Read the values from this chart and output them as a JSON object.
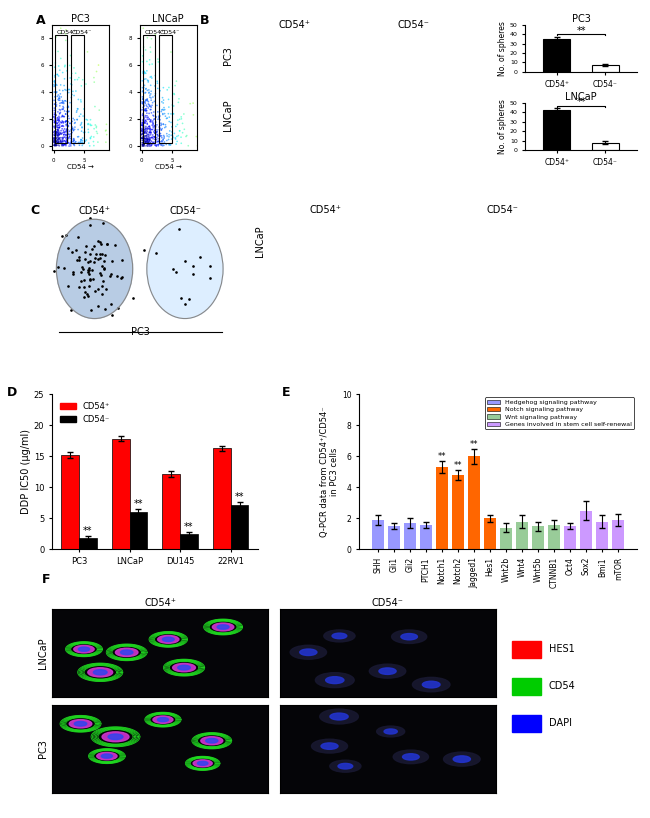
{
  "panel_D": {
    "groups": [
      "PC3",
      "LNCaP",
      "DU145",
      "22RV1"
    ],
    "cd54pos_values": [
      15.2,
      17.8,
      12.2,
      16.3
    ],
    "cd54pos_errors": [
      0.5,
      0.4,
      0.5,
      0.4
    ],
    "cd54neg_values": [
      1.8,
      6.0,
      2.5,
      7.2
    ],
    "cd54neg_errors": [
      0.3,
      0.5,
      0.3,
      0.4
    ],
    "cd54pos_color": "#FF0000",
    "cd54neg_color": "#000000",
    "ylabel": "DDP IC50 (μg/ml)",
    "ylim": [
      0,
      25
    ],
    "yticks": [
      0,
      5,
      10,
      15,
      20,
      25
    ],
    "significance": [
      true,
      true,
      true,
      true
    ]
  },
  "panel_E": {
    "categories": [
      "SHH",
      "Gli1",
      "Gli2",
      "PTCH1",
      "Notch1",
      "Notch2",
      "Jagged1",
      "Hes1",
      "Wnt2b",
      "Wnt4",
      "Wnt5b",
      "CTNNB1",
      "Oct4",
      "Sox2",
      "Bmi1",
      "mTOR"
    ],
    "values": [
      1.9,
      1.5,
      1.7,
      1.6,
      5.3,
      4.8,
      6.0,
      2.0,
      1.4,
      1.8,
      1.5,
      1.6,
      1.5,
      2.5,
      1.8,
      1.9
    ],
    "errors": [
      0.3,
      0.2,
      0.3,
      0.2,
      0.4,
      0.3,
      0.5,
      0.2,
      0.3,
      0.4,
      0.3,
      0.3,
      0.2,
      0.6,
      0.4,
      0.4
    ],
    "colors": [
      "#9999FF",
      "#9999FF",
      "#9999FF",
      "#9999FF",
      "#FF6600",
      "#FF6600",
      "#FF6600",
      "#FF6600",
      "#99CC99",
      "#99CC99",
      "#99CC99",
      "#99CC99",
      "#CC99FF",
      "#CC99FF",
      "#CC99FF",
      "#CC99FF"
    ],
    "pathway_colors": [
      "#9999FF",
      "#FF6600",
      "#99CC99",
      "#CC99FF"
    ],
    "pathway_names": [
      "Hedgehog signaling pathway",
      "Notch signaling pathway",
      "Wnt signaling pathway",
      "Genes involved in stem cell self-renewal"
    ],
    "ylabel": "Q-PCR data from CD54⁺/CD54⁻\nin PC3 cells",
    "ylim": [
      0,
      10
    ],
    "yticks": [
      0,
      2,
      4,
      6,
      8,
      10
    ],
    "significance": [
      false,
      false,
      false,
      false,
      true,
      true,
      true,
      false,
      false,
      false,
      false,
      false,
      false,
      false,
      false,
      false
    ]
  },
  "panel_B_PC3": {
    "cd54pos_value": 35,
    "cd54neg_value": 7,
    "cd54pos_error": 2,
    "cd54neg_error": 1,
    "ylim": [
      0,
      50
    ],
    "yticks": [
      0,
      10,
      20,
      30,
      40,
      50
    ],
    "ylabel": "No. of spheres",
    "title": "PC3"
  },
  "panel_B_LNCaP": {
    "cd54pos_value": 42,
    "cd54neg_value": 8,
    "cd54pos_error": 2,
    "cd54neg_error": 1.5,
    "ylim": [
      0,
      50
    ],
    "yticks": [
      0,
      10,
      20,
      30,
      40,
      50
    ],
    "ylabel": "No. of spheres",
    "title": "LNCaP"
  },
  "panel_F_legend": [
    {
      "label": "HES1",
      "color": "#FF0000"
    },
    {
      "label": "CD54",
      "color": "#00CC00"
    },
    {
      "label": "DAPI",
      "color": "#0000FF"
    }
  ],
  "figure_bg": "#FFFFFF"
}
